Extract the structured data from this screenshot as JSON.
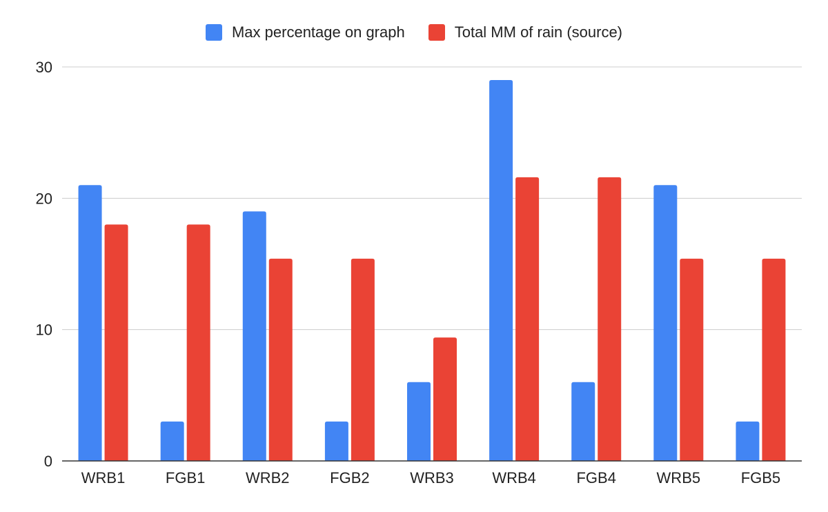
{
  "chart_data": {
    "type": "bar",
    "categories": [
      "WRB1",
      "FGB1",
      "WRB2",
      "FGB2",
      "WRB3",
      "WRB4",
      "FGB4",
      "WRB5",
      "FGB5"
    ],
    "series": [
      {
        "name": "Max percentage on graph",
        "color": "#4285f4",
        "values": [
          21,
          3,
          19,
          3,
          6,
          29,
          6,
          21,
          3
        ]
      },
      {
        "name": "Total MM of rain (source)",
        "color": "#ea4335",
        "values": [
          18,
          18,
          15.4,
          15.4,
          9.4,
          21.6,
          21.6,
          15.4,
          15.4
        ]
      }
    ],
    "yticks": [
      "0",
      "10",
      "20",
      "30"
    ],
    "ylim": [
      0,
      30
    ],
    "grid": true,
    "legend": "top-center"
  }
}
